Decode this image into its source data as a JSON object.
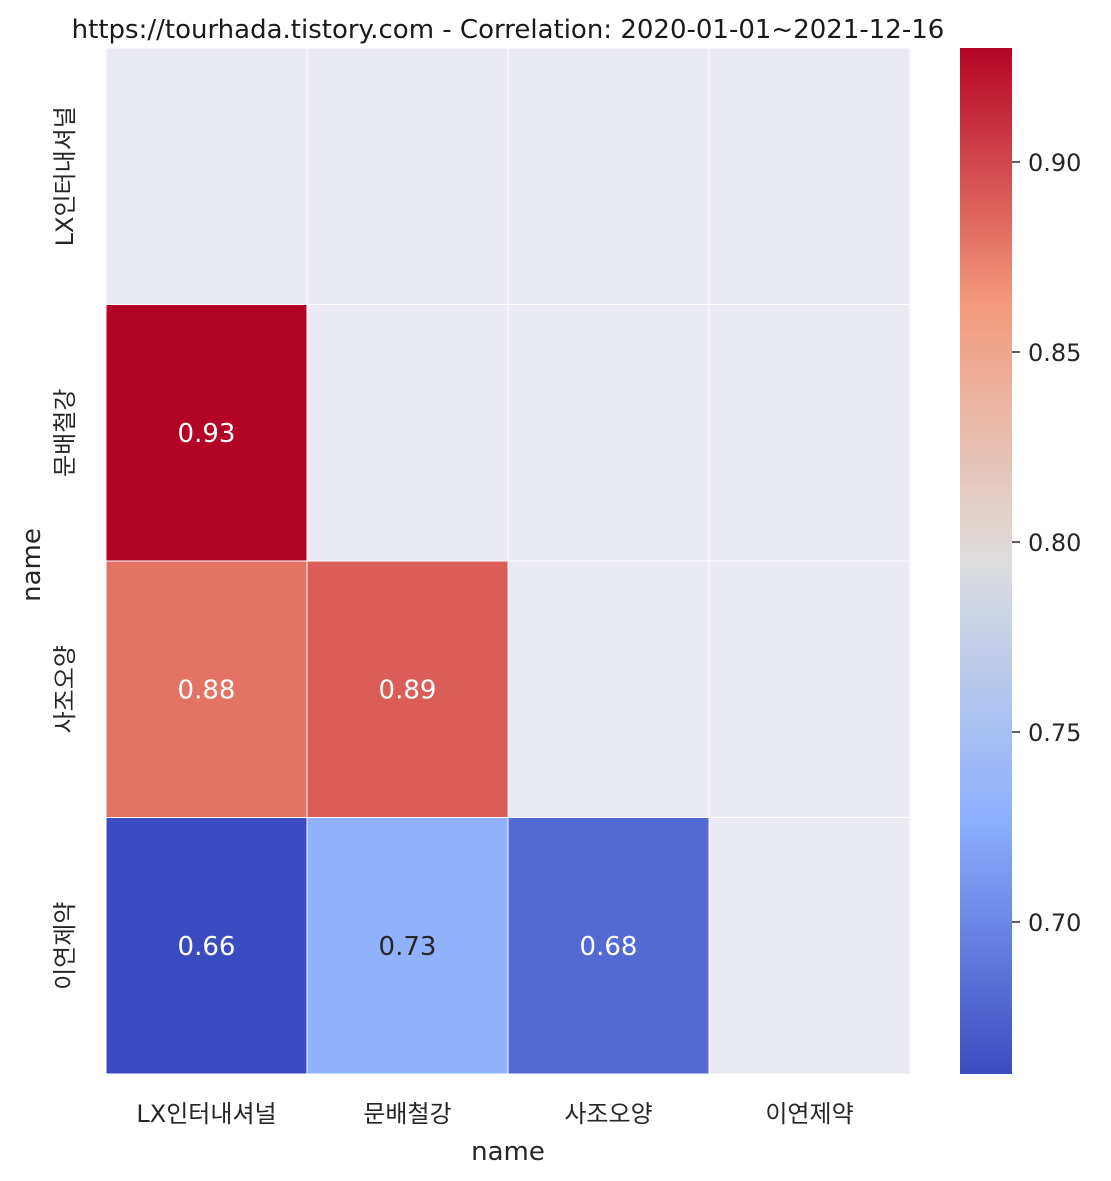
{
  "chart_data": {
    "type": "heatmap",
    "title": "https://tourhada.tistory.com - Correlation: 2020-01-01~2021-12-16",
    "xlabel": "name",
    "ylabel": "name",
    "x_categories": [
      "LX인터내셔널",
      "문배철강",
      "사조오양",
      "이연제약"
    ],
    "y_categories": [
      "LX인터내셔널",
      "문배철강",
      "사조오양",
      "이연제약"
    ],
    "mask": "upper-triangle-including-diagonal",
    "cells": [
      {
        "row": "문배철강",
        "col": "LX인터내셔널",
        "value": 0.93
      },
      {
        "row": "사조오양",
        "col": "LX인터내셔널",
        "value": 0.88
      },
      {
        "row": "사조오양",
        "col": "문배철강",
        "value": 0.89
      },
      {
        "row": "이연제약",
        "col": "LX인터내셔널",
        "value": 0.66
      },
      {
        "row": "이연제약",
        "col": "문배철강",
        "value": 0.73
      },
      {
        "row": "이연제약",
        "col": "사조오양",
        "value": 0.68
      }
    ],
    "colormap": "coolwarm",
    "colorbar": {
      "min": 0.66,
      "max": 0.93,
      "ticks": [
        0.7,
        0.75,
        0.8,
        0.85,
        0.9
      ],
      "tick_labels": [
        "0.70",
        "0.75",
        "0.80",
        "0.85",
        "0.90"
      ]
    },
    "masked_color": "#eaeaf2",
    "grid": true
  }
}
